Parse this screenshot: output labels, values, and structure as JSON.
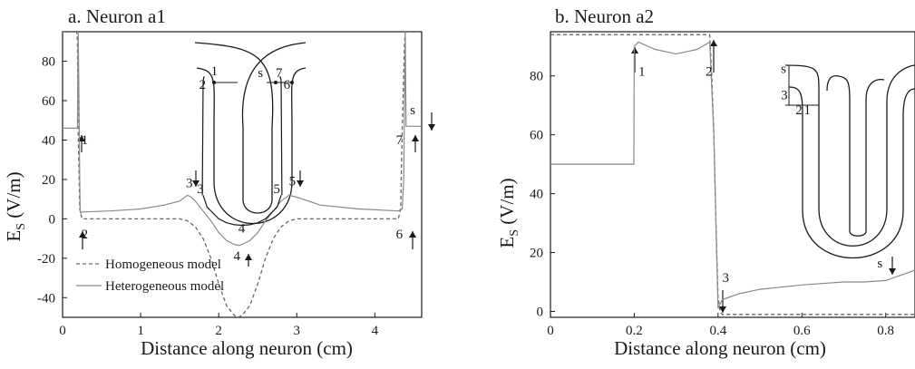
{
  "figure": {
    "background": "#ffffff",
    "ink": "#1a1a1a",
    "homogeneous_color": "#666666",
    "heterogeneous_color": "#8a8a8a"
  },
  "chart_data": [
    {
      "type": "line",
      "title": "a. Neuron a1",
      "xlabel": "Distance along neuron (cm)",
      "ylabel": "E",
      "ylabel_sub": "S",
      "ylabel_unit": " (V/m)",
      "xlim": [
        0,
        4.6
      ],
      "ylim": [
        -50,
        95
      ],
      "xticks": [
        0,
        1,
        2,
        3,
        4
      ],
      "yticks": [
        -40,
        -20,
        0,
        20,
        40,
        60,
        80
      ],
      "grid": false,
      "legend_position": "bottom-left",
      "series": [
        {
          "name": "Homogeneous model",
          "style": "dashed",
          "x": [
            0,
            0.18,
            0.19,
            0.2,
            0.22,
            0.25,
            1.5,
            1.6,
            1.7,
            1.8,
            1.9,
            2.0,
            2.1,
            2.2,
            2.25,
            2.3,
            2.4,
            2.5,
            2.6,
            2.7,
            2.8,
            2.9,
            3.0,
            4.3,
            4.33,
            4.35,
            4.38,
            4.39,
            4.6
          ],
          "y": [
            95,
            95,
            90,
            45,
            5,
            0,
            0,
            -1,
            -4,
            -10,
            -20,
            -33,
            -44,
            -49,
            -50,
            -49,
            -44,
            -33,
            -20,
            -10,
            -4,
            -1,
            0,
            0,
            5,
            45,
            90,
            95,
            95
          ]
        },
        {
          "name": "Heterogeneous model",
          "style": "solid",
          "x": [
            0,
            0.19,
            0.2,
            0.205,
            0.21,
            0.215,
            0.22,
            0.225,
            0.23,
            0.25,
            0.6,
            1.0,
            1.3,
            1.5,
            1.6,
            1.65,
            1.7,
            1.8,
            1.9,
            2.0,
            2.1,
            2.2,
            2.25,
            2.3,
            2.4,
            2.5,
            2.6,
            2.7,
            2.8,
            2.9,
            3.0,
            3.3,
            3.8,
            4.3,
            4.35,
            4.37,
            4.375,
            4.38,
            4.385,
            4.39,
            4.4,
            4.6
          ],
          "y": [
            46,
            46,
            95,
            80,
            60,
            40,
            20,
            5,
            3,
            3.5,
            4,
            5,
            7,
            9,
            12,
            11,
            9,
            4,
            -1,
            -7,
            -11,
            -13,
            -13.5,
            -13,
            -11,
            -7,
            -1,
            4,
            9,
            12,
            11,
            7,
            5,
            4,
            5,
            20,
            40,
            60,
            80,
            95,
            47,
            47
          ]
        },
        {
          "name": "",
          "style": "solid",
          "x": [
            1.8,
            1.85,
            2.0,
            2.1,
            2.2,
            2.3,
            2.4,
            2.5,
            2.6,
            2.75,
            2.8
          ],
          "y": [
            12,
            6,
            0,
            -2,
            -3,
            -3.3,
            -3,
            -2,
            0,
            6,
            12
          ]
        },
        {
          "name": "",
          "style": "solid",
          "x": [
            1.79,
            1.8,
            1.81,
            1.815,
            1.82
          ],
          "y": [
            12,
            70,
            72,
            72,
            72
          ]
        },
        {
          "name": "",
          "style": "solid",
          "x": [
            2.78,
            2.79,
            2.8,
            2.81
          ],
          "y": [
            72,
            72,
            70,
            12
          ]
        }
      ],
      "annotations": [
        {
          "text": "1",
          "x": 0.24,
          "y": 38
        },
        {
          "text": "2",
          "x": 0.24,
          "y": -10
        },
        {
          "text": "3",
          "x": 1.58,
          "y": 16
        },
        {
          "text": "3",
          "x": 1.72,
          "y": 13
        },
        {
          "text": "4",
          "x": 2.25,
          "y": -7
        },
        {
          "text": "4",
          "x": 2.19,
          "y": -21
        },
        {
          "text": "5",
          "x": 2.7,
          "y": 13
        },
        {
          "text": "5",
          "x": 2.9,
          "y": 17
        },
        {
          "text": "6",
          "x": 4.27,
          "y": -10
        },
        {
          "text": "7",
          "x": 4.27,
          "y": 38
        },
        {
          "text": "s",
          "x": 4.45,
          "y": 53
        },
        {
          "text": "1",
          "x": 1.9,
          "y": 73
        },
        {
          "text": "2",
          "x": 1.75,
          "y": 66
        },
        {
          "text": "s",
          "x": 2.5,
          "y": 72
        },
        {
          "text": "7",
          "x": 2.73,
          "y": 72
        },
        {
          "text": "6",
          "x": 2.83,
          "y": 66
        }
      ]
    },
    {
      "type": "line",
      "title": "b. Neuron a2",
      "xlabel": "Distance along neuron (cm)",
      "ylabel": "E",
      "ylabel_sub": "S",
      "ylabel_unit": " (V/m)",
      "xlim": [
        0,
        0.87
      ],
      "ylim": [
        -2,
        95
      ],
      "xticks": [
        0,
        0.2,
        0.4,
        0.6,
        0.8
      ],
      "yticks": [
        0,
        20,
        40,
        60,
        80
      ],
      "grid": false,
      "series": [
        {
          "name": "Homogeneous model",
          "style": "dashed",
          "x": [
            0,
            0.2,
            0.38,
            0.385,
            0.39,
            0.395,
            0.4,
            0.405,
            0.41,
            0.87
          ],
          "y": [
            94,
            94,
            94,
            80,
            60,
            30,
            5,
            0,
            -1,
            -1
          ]
        },
        {
          "name": "Heterogeneous model",
          "style": "solid",
          "x": [
            0,
            0.199,
            0.2,
            0.21,
            0.25,
            0.3,
            0.35,
            0.38,
            0.39,
            0.395,
            0.4,
            0.41,
            0.45,
            0.5,
            0.6,
            0.7,
            0.75,
            0.8,
            0.85,
            0.87
          ],
          "y": [
            50,
            50,
            90,
            91.5,
            89,
            87.5,
            89,
            91.5,
            60,
            30,
            1,
            4,
            6,
            7.5,
            9,
            10,
            10,
            10.5,
            13,
            14
          ]
        }
      ],
      "annotations": [
        {
          "text": "1",
          "x": 0.21,
          "y": 80
        },
        {
          "text": "2",
          "x": 0.37,
          "y": 80
        },
        {
          "text": "3",
          "x": 0.41,
          "y": 10
        },
        {
          "text": "s",
          "x": 0.78,
          "y": 15
        },
        {
          "text": "s",
          "x": 0.55,
          "y": 81
        },
        {
          "text": "3",
          "x": 0.55,
          "y": 72
        },
        {
          "text": "2",
          "x": 0.585,
          "y": 67
        },
        {
          "text": "1",
          "x": 0.605,
          "y": 67
        }
      ]
    }
  ]
}
